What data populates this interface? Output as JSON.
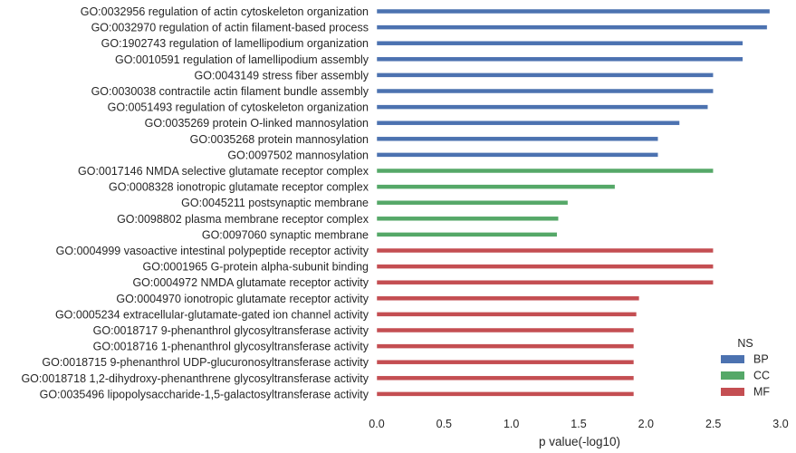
{
  "chart_data": {
    "type": "bar",
    "orientation": "horizontal",
    "title": "",
    "xlabel": "p value(-log10)",
    "ylabel": "",
    "xlim": [
      0.0,
      3.0
    ],
    "xticks": [
      "0.0",
      "0.5",
      "1.0",
      "1.5",
      "2.0",
      "2.5",
      "3.0"
    ],
    "grid": false,
    "legend": {
      "title": "NS",
      "placement": "bottom-right",
      "entries": [
        "BP",
        "CC",
        "MF"
      ]
    },
    "colors": {
      "BP": "#4c72b0",
      "CC": "#55a868",
      "MF": "#c44e52"
    },
    "categories": [
      "GO:0032956 regulation of actin cytoskeleton organization",
      "GO:0032970 regulation of actin filament-based process",
      "GO:1902743 regulation of lamellipodium organization",
      "GO:0010591 regulation of lamellipodium assembly",
      "GO:0043149 stress fiber assembly",
      "GO:0030038 contractile actin filament bundle assembly",
      "GO:0051493 regulation of cytoskeleton organization",
      "GO:0035269 protein O-linked mannosylation",
      "GO:0035268 protein mannosylation",
      "GO:0097502 mannosylation",
      "GO:0017146 NMDA selective glutamate receptor complex",
      "GO:0008328 ionotropic glutamate receptor complex",
      "GO:0045211 postsynaptic membrane",
      "GO:0098802 plasma membrane receptor complex",
      "GO:0097060 synaptic membrane",
      "GO:0004999 vasoactive intestinal polypeptide receptor activity",
      "GO:0001965 G-protein alpha-subunit binding",
      "GO:0004972 NMDA glutamate receptor activity",
      "GO:0004970 ionotropic glutamate receptor activity",
      "GO:0005234 extracellular-glutamate-gated ion channel activity",
      "GO:0018717 9-phenanthrol glycosyltransferase activity",
      "GO:0018716 1-phenanthrol glycosyltransferase activity",
      "GO:0018715 9-phenanthrol UDP-glucuronosyltransferase activity",
      "GO:0018718 1,2-dihydroxy-phenanthrene glycosyltransferase activity",
      "GO:0035496 lipopolysaccharide-1,5-galactosyltransferase activity"
    ],
    "groups": [
      "BP",
      "BP",
      "BP",
      "BP",
      "BP",
      "BP",
      "BP",
      "BP",
      "BP",
      "BP",
      "CC",
      "CC",
      "CC",
      "CC",
      "CC",
      "MF",
      "MF",
      "MF",
      "MF",
      "MF",
      "MF",
      "MF",
      "MF",
      "MF",
      "MF"
    ],
    "values": [
      2.92,
      2.9,
      2.72,
      2.72,
      2.5,
      2.5,
      2.46,
      2.25,
      2.09,
      2.09,
      2.5,
      1.77,
      1.42,
      1.35,
      1.34,
      2.5,
      2.5,
      2.5,
      1.95,
      1.93,
      1.91,
      1.91,
      1.91,
      1.91,
      1.91
    ]
  }
}
